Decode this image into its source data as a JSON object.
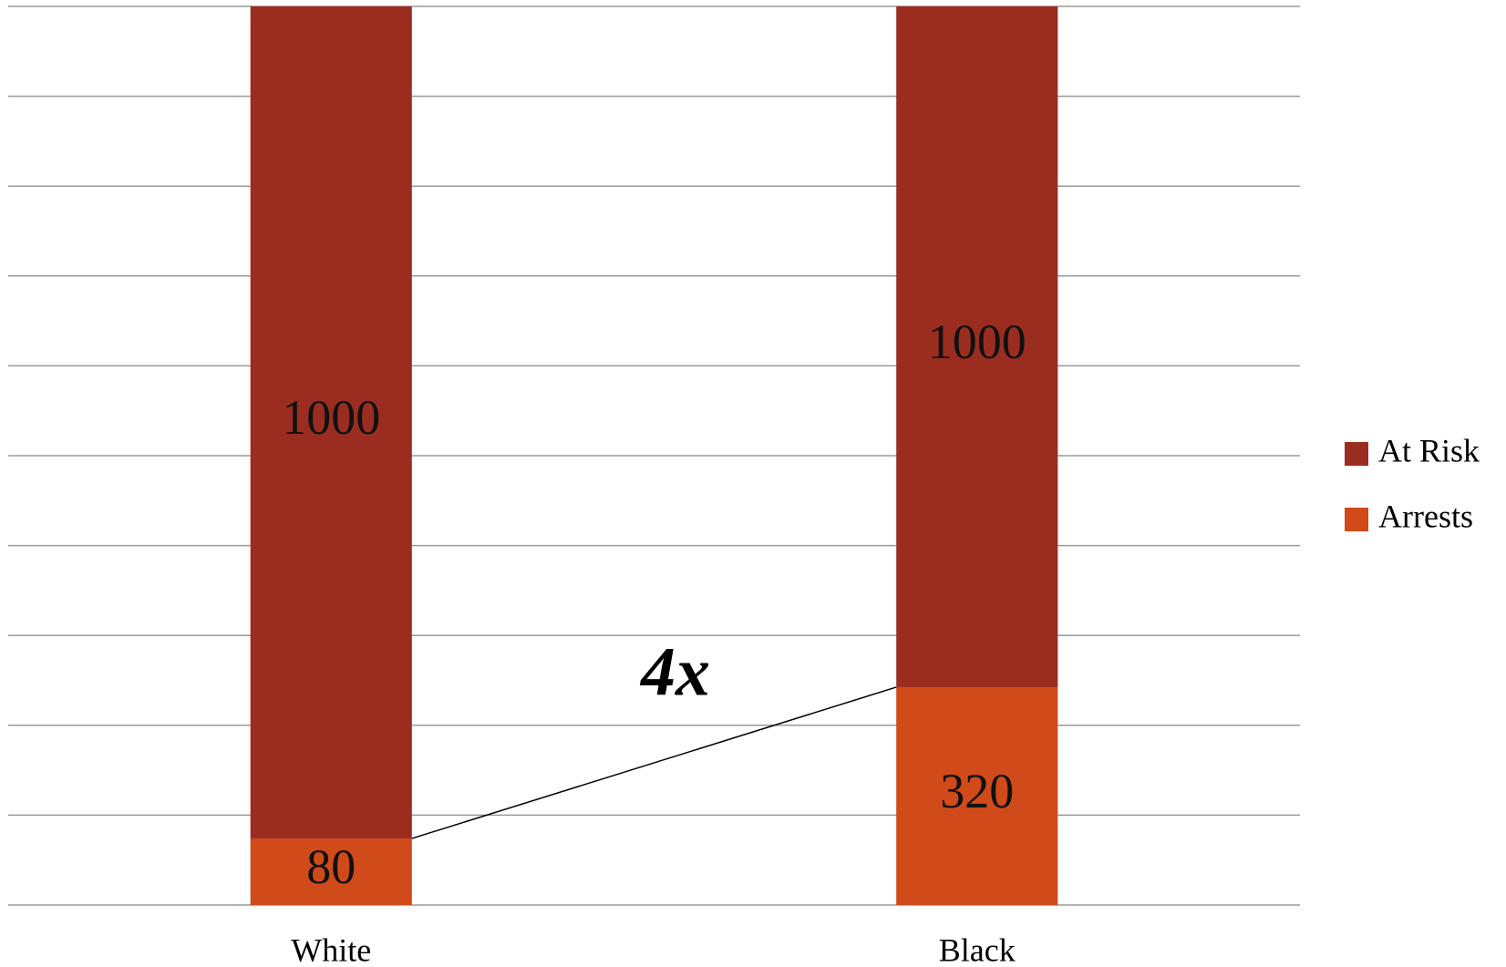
{
  "chart_data": {
    "type": "bar",
    "stacking": "percent",
    "categories": [
      "White",
      "Black"
    ],
    "series": [
      {
        "name": "Arrests",
        "color": "#d04a1a",
        "values": [
          80,
          320
        ]
      },
      {
        "name": "At Risk",
        "color": "#9b2d20",
        "values": [
          1000,
          1000
        ]
      }
    ],
    "ylim": [
      0,
      100
    ],
    "yticks": [
      0,
      10,
      20,
      30,
      40,
      50,
      60,
      70,
      80,
      90,
      100
    ],
    "grid": true,
    "legend": "right",
    "annotation": "4x"
  }
}
